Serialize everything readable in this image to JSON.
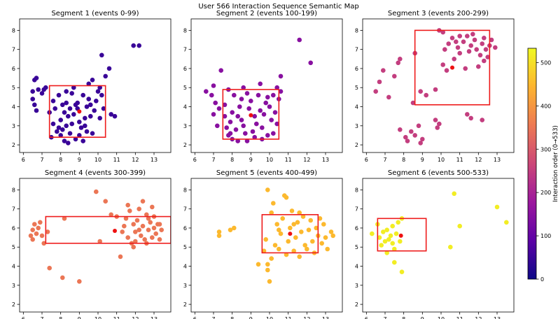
{
  "title": "User 566 Interaction Sequence Semantic Map",
  "colorbar": {
    "label": "Interaction order (0→533)",
    "min": 0,
    "max": 533,
    "ticks": [
      0,
      100,
      200,
      300,
      400,
      500
    ],
    "colormap": "plasma",
    "colors": [
      "#0d0887",
      "#5c01a6",
      "#9c179e",
      "#cc4778",
      "#ed7953",
      "#fdb42f",
      "#f0f921"
    ]
  },
  "chart_data": [
    {
      "type": "scatter",
      "title": "Segment 1  (events 0-99)",
      "xlim": [
        5.8,
        13.9
      ],
      "ylim": [
        1.6,
        8.6
      ],
      "xticks": [
        6,
        7,
        8,
        9,
        10,
        11,
        12,
        13
      ],
      "yticks": [
        2,
        3,
        4,
        5,
        6,
        7,
        8
      ],
      "color_value": 50,
      "box": {
        "x0": 7.4,
        "x1": 10.4,
        "y0": 2.4,
        "y1": 5.1,
        "color": "#ee1c1c"
      },
      "highlight": {
        "x": 9.0,
        "y": 3.75,
        "color": "#ee1111"
      },
      "points": [
        [
          6.5,
          4.8
        ],
        [
          6.6,
          5.4
        ],
        [
          6.7,
          5.5
        ],
        [
          6.8,
          4.9
        ],
        [
          6.6,
          4.1
        ],
        [
          6.7,
          3.8
        ],
        [
          6.5,
          4.4
        ],
        [
          7.0,
          4.7
        ],
        [
          7.1,
          4.9
        ],
        [
          7.2,
          5.0
        ],
        [
          7.4,
          3.7
        ],
        [
          7.6,
          4.3
        ],
        [
          7.7,
          3.9
        ],
        [
          7.5,
          2.4
        ],
        [
          7.8,
          2.7
        ],
        [
          7.9,
          2.9
        ],
        [
          8.1,
          4.1
        ],
        [
          8.2,
          3.7
        ],
        [
          8.3,
          4.2
        ],
        [
          8.4,
          3.5
        ],
        [
          8.3,
          3.0
        ],
        [
          8.0,
          2.5
        ],
        [
          8.2,
          2.2
        ],
        [
          8.4,
          2.1
        ],
        [
          8.5,
          2.6
        ],
        [
          8.6,
          3.1
        ],
        [
          8.7,
          3.6
        ],
        [
          8.8,
          4.1
        ],
        [
          8.9,
          4.2
        ],
        [
          8.6,
          4.7
        ],
        [
          8.7,
          5.0
        ],
        [
          8.9,
          3.9
        ],
        [
          9.0,
          3.2
        ],
        [
          9.1,
          2.9
        ],
        [
          9.0,
          2.5
        ],
        [
          9.2,
          2.2
        ],
        [
          9.3,
          3.4
        ],
        [
          9.4,
          4.0
        ],
        [
          9.5,
          4.4
        ],
        [
          9.6,
          3.5
        ],
        [
          9.7,
          2.6
        ],
        [
          9.8,
          3.8
        ],
        [
          9.9,
          4.3
        ],
        [
          10.0,
          4.8
        ],
        [
          9.5,
          5.2
        ],
        [
          9.7,
          5.4
        ],
        [
          10.1,
          5.0
        ],
        [
          10.2,
          4.6
        ],
        [
          10.3,
          3.9
        ],
        [
          10.4,
          5.6
        ],
        [
          10.6,
          6.0
        ],
        [
          10.7,
          3.6
        ],
        [
          10.9,
          3.5
        ],
        [
          10.2,
          6.7
        ],
        [
          11.9,
          7.2
        ],
        [
          12.2,
          7.2
        ],
        [
          7.6,
          3.1
        ],
        [
          8.0,
          3.3
        ],
        [
          8.5,
          3.9
        ],
        [
          9.2,
          4.6
        ],
        [
          9.4,
          2.7
        ],
        [
          8.8,
          2.3
        ],
        [
          7.9,
          4.6
        ],
        [
          8.3,
          4.8
        ],
        [
          9.6,
          4.1
        ],
        [
          10.1,
          3.4
        ],
        [
          8.1,
          2.8
        ],
        [
          9.3,
          3.0
        ]
      ]
    },
    {
      "type": "scatter",
      "title": "Segment 2  (events 100-199)",
      "xlim": [
        5.8,
        13.9
      ],
      "ylim": [
        1.6,
        8.6
      ],
      "xticks": [
        6,
        7,
        8,
        9,
        10,
        11,
        12,
        13
      ],
      "yticks": [
        2,
        3,
        4,
        5,
        6,
        7,
        8
      ],
      "color_value": 150,
      "box": {
        "x0": 7.5,
        "x1": 10.5,
        "y0": 2.3,
        "y1": 4.9,
        "color": "#ee1c1c"
      },
      "highlight": {
        "x": 9.0,
        "y": 3.55,
        "color": "#ee1111"
      },
      "points": [
        [
          6.6,
          4.8
        ],
        [
          6.9,
          4.6
        ],
        [
          7.0,
          5.1
        ],
        [
          7.1,
          4.2
        ],
        [
          7.3,
          3.9
        ],
        [
          7.0,
          3.6
        ],
        [
          7.2,
          3.0
        ],
        [
          7.6,
          3.5
        ],
        [
          7.7,
          2.9
        ],
        [
          7.9,
          3.2
        ],
        [
          7.8,
          2.5
        ],
        [
          8.0,
          2.3
        ],
        [
          8.2,
          2.8
        ],
        [
          8.3,
          3.5
        ],
        [
          8.4,
          4.0
        ],
        [
          8.5,
          4.4
        ],
        [
          8.6,
          3.0
        ],
        [
          8.7,
          2.6
        ],
        [
          8.8,
          2.2
        ],
        [
          8.9,
          3.9
        ],
        [
          9.0,
          4.3
        ],
        [
          9.1,
          2.7
        ],
        [
          9.2,
          2.4
        ],
        [
          9.3,
          3.1
        ],
        [
          9.4,
          4.6
        ],
        [
          9.5,
          3.8
        ],
        [
          9.6,
          2.9
        ],
        [
          9.7,
          3.6
        ],
        [
          9.8,
          4.2
        ],
        [
          9.9,
          2.5
        ],
        [
          10.0,
          4.0
        ],
        [
          10.1,
          3.3
        ],
        [
          10.2,
          4.6
        ],
        [
          10.3,
          3.7
        ],
        [
          10.4,
          5.0
        ],
        [
          10.5,
          4.4
        ],
        [
          10.6,
          4.8
        ],
        [
          10.6,
          5.6
        ],
        [
          7.4,
          5.9
        ],
        [
          7.8,
          4.9
        ],
        [
          8.1,
          4.6
        ],
        [
          9.5,
          5.2
        ],
        [
          8.6,
          5.0
        ],
        [
          11.6,
          7.5
        ],
        [
          12.2,
          6.3
        ],
        [
          7.6,
          4.1
        ],
        [
          8.0,
          3.7
        ],
        [
          8.5,
          3.3
        ],
        [
          9.2,
          3.5
        ],
        [
          9.6,
          2.3
        ],
        [
          10.2,
          2.6
        ],
        [
          7.9,
          2.6
        ],
        [
          8.8,
          4.7
        ],
        [
          9.9,
          4.5
        ],
        [
          10.4,
          3.1
        ],
        [
          8.3,
          2.2
        ]
      ]
    },
    {
      "type": "scatter",
      "title": "Segment 3  (events 200-299)",
      "xlim": [
        5.8,
        13.9
      ],
      "ylim": [
        1.6,
        8.6
      ],
      "xticks": [
        6,
        7,
        8,
        9,
        10,
        11,
        12,
        13
      ],
      "yticks": [
        2,
        3,
        4,
        5,
        6,
        7,
        8
      ],
      "color_value": 250,
      "box": {
        "x0": 8.6,
        "x1": 12.6,
        "y0": 4.1,
        "y1": 8.0,
        "color": "#ee1c1c"
      },
      "highlight": {
        "x": 10.6,
        "y": 6.05,
        "color": "#ee1111"
      },
      "points": [
        [
          6.5,
          4.8
        ],
        [
          6.7,
          5.3
        ],
        [
          6.9,
          5.9
        ],
        [
          7.2,
          4.5
        ],
        [
          7.5,
          5.6
        ],
        [
          7.7,
          6.3
        ],
        [
          7.8,
          6.5
        ],
        [
          8.5,
          4.2
        ],
        [
          8.6,
          6.8
        ],
        [
          8.9,
          4.8
        ],
        [
          9.2,
          4.6
        ],
        [
          7.8,
          2.8
        ],
        [
          8.1,
          2.4
        ],
        [
          8.2,
          2.2
        ],
        [
          8.4,
          2.7
        ],
        [
          8.6,
          2.5
        ],
        [
          8.8,
          3.0
        ],
        [
          8.9,
          2.1
        ],
        [
          9.0,
          2.3
        ],
        [
          9.7,
          3.3
        ],
        [
          9.8,
          2.9
        ],
        [
          9.9,
          3.1
        ],
        [
          9.7,
          4.9
        ],
        [
          10.1,
          6.2
        ],
        [
          10.2,
          7.0
        ],
        [
          10.4,
          7.3
        ],
        [
          10.6,
          7.6
        ],
        [
          10.7,
          6.5
        ],
        [
          10.9,
          7.1
        ],
        [
          11.0,
          6.8
        ],
        [
          11.2,
          7.4
        ],
        [
          11.4,
          7.7
        ],
        [
          11.5,
          6.9
        ],
        [
          11.6,
          7.2
        ],
        [
          11.8,
          7.5
        ],
        [
          11.9,
          7.0
        ],
        [
          12.1,
          6.7
        ],
        [
          12.2,
          7.3
        ],
        [
          12.3,
          7.6
        ],
        [
          12.4,
          7.0
        ],
        [
          12.5,
          6.6
        ],
        [
          12.6,
          7.2
        ],
        [
          12.9,
          7.1
        ],
        [
          12.0,
          6.1
        ],
        [
          11.3,
          6.0
        ],
        [
          10.3,
          5.9
        ],
        [
          9.9,
          8.0
        ],
        [
          10.1,
          7.9
        ],
        [
          11.4,
          3.6
        ],
        [
          11.6,
          3.4
        ],
        [
          12.2,
          3.3
        ],
        [
          11.0,
          7.7
        ],
        [
          11.7,
          7.8
        ],
        [
          12.7,
          7.5
        ],
        [
          12.3,
          6.4
        ],
        [
          10.8,
          7.4
        ]
      ]
    },
    {
      "type": "scatter",
      "title": "Segment 4  (events 300-399)",
      "xlim": [
        5.8,
        13.9
      ],
      "ylim": [
        1.6,
        8.6
      ],
      "xticks": [
        6,
        7,
        8,
        9,
        10,
        11,
        12,
        13
      ],
      "yticks": [
        2,
        3,
        4,
        5,
        6,
        7,
        8
      ],
      "color_value": 350,
      "box": {
        "x0": 7.2,
        "x1": 13.9,
        "y0": 5.2,
        "y1": 6.6,
        "color": "#ee1c1c"
      },
      "highlight": {
        "x": 10.9,
        "y": 5.85,
        "color": "#ee1111"
      },
      "points": [
        [
          6.4,
          5.6
        ],
        [
          6.5,
          5.9
        ],
        [
          6.6,
          6.2
        ],
        [
          6.5,
          5.4
        ],
        [
          6.7,
          5.7
        ],
        [
          6.8,
          6.0
        ],
        [
          6.9,
          6.3
        ],
        [
          7.0,
          5.6
        ],
        [
          7.1,
          5.2
        ],
        [
          7.3,
          5.8
        ],
        [
          7.4,
          3.9
        ],
        [
          8.1,
          3.4
        ],
        [
          9.0,
          3.2
        ],
        [
          8.2,
          6.5
        ],
        [
          9.9,
          7.9
        ],
        [
          10.1,
          5.3
        ],
        [
          10.4,
          7.4
        ],
        [
          10.7,
          6.7
        ],
        [
          11.0,
          6.6
        ],
        [
          11.2,
          4.5
        ],
        [
          11.4,
          6.1
        ],
        [
          11.5,
          6.5
        ],
        [
          11.6,
          5.5
        ],
        [
          11.7,
          6.9
        ],
        [
          11.8,
          5.2
        ],
        [
          11.9,
          6.2
        ],
        [
          12.0,
          5.8
        ],
        [
          12.1,
          6.4
        ],
        [
          12.2,
          7.0
        ],
        [
          12.3,
          5.6
        ],
        [
          12.4,
          6.1
        ],
        [
          12.5,
          5.4
        ],
        [
          12.6,
          6.7
        ],
        [
          12.7,
          5.9
        ],
        [
          12.8,
          6.3
        ],
        [
          12.9,
          5.5
        ],
        [
          13.0,
          6.0
        ],
        [
          13.1,
          5.7
        ],
        [
          13.2,
          6.2
        ],
        [
          13.3,
          5.4
        ],
        [
          13.4,
          5.9
        ],
        [
          12.4,
          7.4
        ],
        [
          12.9,
          7.1
        ],
        [
          11.6,
          7.2
        ],
        [
          12.0,
          5.3
        ],
        [
          12.6,
          5.2
        ],
        [
          11.3,
          5.8
        ],
        [
          13.0,
          6.6
        ],
        [
          12.2,
          5.9
        ],
        [
          11.9,
          5.0
        ],
        [
          12.7,
          6.5
        ],
        [
          13.3,
          6.2
        ]
      ]
    },
    {
      "type": "scatter",
      "title": "Segment 5  (events 400-499)",
      "xlim": [
        5.8,
        13.9
      ],
      "ylim": [
        1.6,
        8.6
      ],
      "xticks": [
        6,
        7,
        8,
        9,
        10,
        11,
        12,
        13
      ],
      "yticks": [
        2,
        3,
        4,
        5,
        6,
        7,
        8
      ],
      "color_value": 450,
      "box": {
        "x0": 9.6,
        "x1": 12.6,
        "y0": 4.7,
        "y1": 6.7,
        "color": "#ee1c1c"
      },
      "highlight": {
        "x": 11.1,
        "y": 5.7,
        "color": "#ee1111"
      },
      "points": [
        [
          7.3,
          5.6
        ],
        [
          7.3,
          5.8
        ],
        [
          7.9,
          5.9
        ],
        [
          8.1,
          6.0
        ],
        [
          9.4,
          4.1
        ],
        [
          9.7,
          4.8
        ],
        [
          9.8,
          5.4
        ],
        [
          9.9,
          3.8
        ],
        [
          10.0,
          3.2
        ],
        [
          10.1,
          6.8
        ],
        [
          10.2,
          7.3
        ],
        [
          10.3,
          5.1
        ],
        [
          10.4,
          6.2
        ],
        [
          10.5,
          4.9
        ],
        [
          10.6,
          5.7
        ],
        [
          10.7,
          6.5
        ],
        [
          10.8,
          7.7
        ],
        [
          10.9,
          4.6
        ],
        [
          11.0,
          5.3
        ],
        [
          11.1,
          6.0
        ],
        [
          11.2,
          6.9
        ],
        [
          11.3,
          4.8
        ],
        [
          11.4,
          5.5
        ],
        [
          11.5,
          6.3
        ],
        [
          11.6,
          4.5
        ],
        [
          11.7,
          5.8
        ],
        [
          11.8,
          6.6
        ],
        [
          11.9,
          5.1
        ],
        [
          12.0,
          4.9
        ],
        [
          12.1,
          5.9
        ],
        [
          12.2,
          6.4
        ],
        [
          12.3,
          5.3
        ],
        [
          12.4,
          4.7
        ],
        [
          12.5,
          6.0
        ],
        [
          12.6,
          5.6
        ],
        [
          12.8,
          5.2
        ],
        [
          12.9,
          6.2
        ],
        [
          13.0,
          5.5
        ],
        [
          13.1,
          4.9
        ],
        [
          13.3,
          5.8
        ],
        [
          13.4,
          5.6
        ],
        [
          9.9,
          8.0
        ],
        [
          10.9,
          7.6
        ],
        [
          10.1,
          4.4
        ],
        [
          9.9,
          4.1
        ],
        [
          11.6,
          6.8
        ],
        [
          12.7,
          6.5
        ],
        [
          10.5,
          5.9
        ],
        [
          11.3,
          6.2
        ]
      ]
    },
    {
      "type": "scatter",
      "title": "Segment 6  (events 500-533)",
      "xlim": [
        5.8,
        13.9
      ],
      "ylim": [
        1.6,
        8.6
      ],
      "xticks": [
        6,
        7,
        8,
        9,
        10,
        11,
        12,
        13
      ],
      "yticks": [
        2,
        3,
        4,
        5,
        6,
        7,
        8
      ],
      "color_value": 517,
      "box": {
        "x0": 6.6,
        "x1": 9.2,
        "y0": 4.8,
        "y1": 6.5,
        "color": "#ee1c1c"
      },
      "highlight": {
        "x": 7.85,
        "y": 5.6,
        "color": "#ee1111"
      },
      "points": [
        [
          6.3,
          5.7
        ],
        [
          6.6,
          6.2
        ],
        [
          6.7,
          5.5
        ],
        [
          6.8,
          5.1
        ],
        [
          6.9,
          5.8
        ],
        [
          7.0,
          5.3
        ],
        [
          7.1,
          5.9
        ],
        [
          7.2,
          5.4
        ],
        [
          7.3,
          5.6
        ],
        [
          7.4,
          6.1
        ],
        [
          7.5,
          4.9
        ],
        [
          7.6,
          5.7
        ],
        [
          7.7,
          6.3
        ],
        [
          7.8,
          5.3
        ],
        [
          7.9,
          6.5
        ],
        [
          7.5,
          4.2
        ],
        [
          7.9,
          3.7
        ],
        [
          7.1,
          4.7
        ],
        [
          10.5,
          5.0
        ],
        [
          10.7,
          7.8
        ],
        [
          11.0,
          6.1
        ],
        [
          13.0,
          7.1
        ],
        [
          13.5,
          6.3
        ],
        [
          7.4,
          5.2
        ]
      ]
    }
  ]
}
